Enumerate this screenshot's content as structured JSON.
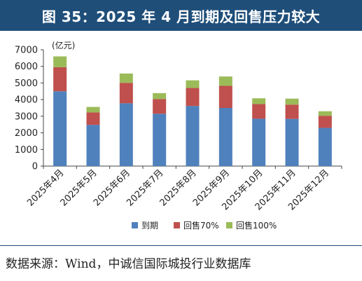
{
  "title": "图 35：2025 年 4 月到期及回售压力较大",
  "source": "数据来源：Wind，中诚信国际城投行业数据库",
  "chart_data": {
    "type": "bar",
    "stacked": true,
    "unit_label": "(亿元)",
    "categories": [
      "2025年4月",
      "2025年5月",
      "2025年6月",
      "2025年7月",
      "2025年8月",
      "2025年9月",
      "2025年10月",
      "2025年11月",
      "2025年12月"
    ],
    "ylim": [
      0,
      7000
    ],
    "yticks": [
      "0",
      "1000",
      "2000",
      "3000",
      "4000",
      "5000",
      "6000",
      "7000"
    ],
    "legend_position": "bottom",
    "grid": false,
    "series": [
      {
        "name": "到期",
        "color": "#4f81bd",
        "values": [
          4500,
          2480,
          3780,
          3150,
          3620,
          3500,
          2850,
          2840,
          2300
        ]
      },
      {
        "name": "回售70%",
        "color": "#c0504d",
        "values": [
          1450,
          750,
          1230,
          880,
          1080,
          1330,
          880,
          860,
          730
        ]
      },
      {
        "name": "回售100%",
        "color": "#9bbb59",
        "values": [
          650,
          330,
          560,
          360,
          460,
          560,
          350,
          360,
          270
        ]
      }
    ]
  }
}
